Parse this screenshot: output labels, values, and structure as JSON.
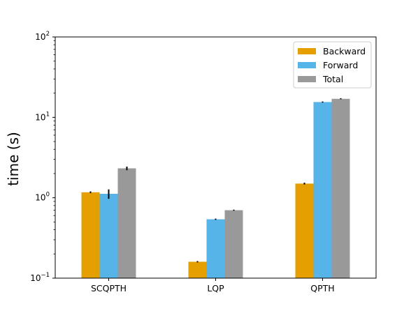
{
  "chart_data": {
    "type": "bar",
    "yscale": "log",
    "ylabel": "time (s)",
    "xlabel": "",
    "ylim": [
      0.1,
      100
    ],
    "yticks": [
      {
        "value": 0.1,
        "base": "10",
        "exp": "−1"
      },
      {
        "value": 1,
        "base": "10",
        "exp": "0"
      },
      {
        "value": 10,
        "base": "10",
        "exp": "1"
      },
      {
        "value": 100,
        "base": "10",
        "exp": "2"
      }
    ],
    "categories": [
      "SCQPTH",
      "LQP",
      "QPTH"
    ],
    "series": [
      {
        "name": "Backward",
        "color": "#E69F00",
        "values": [
          1.17,
          0.16,
          1.5
        ],
        "errors": [
          0.03,
          0.003,
          0.04
        ]
      },
      {
        "name": "Forward",
        "color": "#56B4E9",
        "values": [
          1.12,
          0.54,
          15.5
        ],
        "errors": [
          0.15,
          0.01,
          0.25
        ]
      },
      {
        "name": "Total",
        "color": "#999999",
        "values": [
          2.32,
          0.7,
          17.0
        ],
        "errors": [
          0.12,
          0.01,
          0.2
        ]
      }
    ],
    "legend_position": "top-right",
    "grid": false
  }
}
